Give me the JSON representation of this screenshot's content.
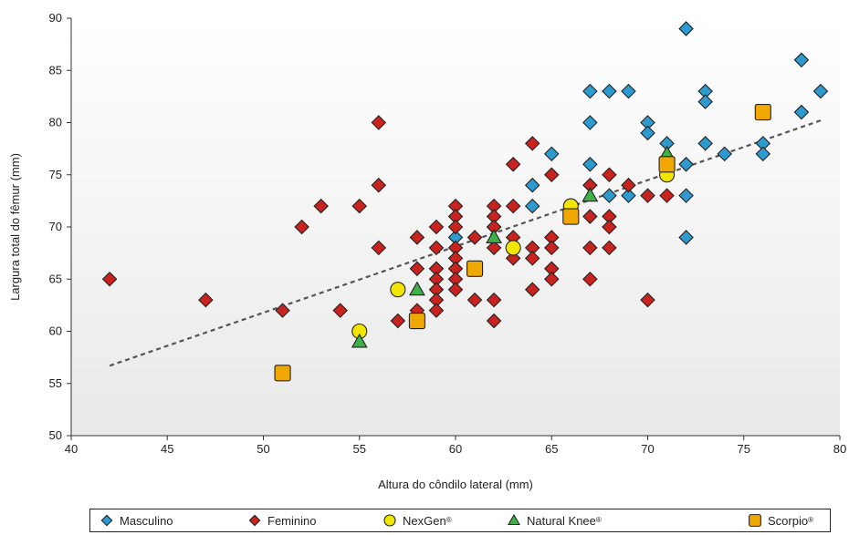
{
  "chart_data": {
    "type": "scatter",
    "xlabel": "Altura do côndilo lateral (mm)",
    "ylabel": "Largura total do fêmur (mm)",
    "xlim": [
      40,
      80
    ],
    "ylim": [
      50,
      90
    ],
    "x_ticks": [
      40,
      45,
      50,
      55,
      60,
      65,
      70,
      75,
      80
    ],
    "y_ticks": [
      50,
      55,
      60,
      65,
      70,
      75,
      80,
      85,
      90
    ],
    "grid": false,
    "legend_position": "bottom",
    "trendline": {
      "style": "dashed",
      "color": "#555555",
      "x": [
        42,
        79
      ],
      "y": [
        56.7,
        80.2
      ]
    },
    "series": [
      {
        "name": "Masculino",
        "sup": "",
        "marker": "diamond",
        "color": "#2e9bd0",
        "points": [
          [
            72,
            89
          ],
          [
            78,
            86
          ],
          [
            79,
            83
          ],
          [
            67,
            83
          ],
          [
            68,
            83
          ],
          [
            69,
            83
          ],
          [
            73,
            83
          ],
          [
            73,
            82
          ],
          [
            67,
            80
          ],
          [
            70,
            80
          ],
          [
            70,
            79
          ],
          [
            71,
            78
          ],
          [
            73,
            78
          ],
          [
            76,
            78
          ],
          [
            78,
            81
          ],
          [
            65,
            77
          ],
          [
            74,
            77
          ],
          [
            76,
            77
          ],
          [
            64,
            74
          ],
          [
            67,
            76
          ],
          [
            72,
            76
          ],
          [
            64,
            72
          ],
          [
            68,
            73
          ],
          [
            69,
            73
          ],
          [
            72,
            73
          ],
          [
            66,
            72
          ],
          [
            62,
            70
          ],
          [
            60,
            69
          ],
          [
            72,
            69
          ]
        ]
      },
      {
        "name": "Feminino",
        "sup": "",
        "marker": "diamond",
        "color": "#c8231e",
        "points": [
          [
            42,
            65
          ],
          [
            47,
            63
          ],
          [
            51,
            62
          ],
          [
            52,
            70
          ],
          [
            53,
            72
          ],
          [
            54,
            62
          ],
          [
            55,
            72
          ],
          [
            56,
            80
          ],
          [
            56,
            74
          ],
          [
            56,
            68
          ],
          [
            57,
            61
          ],
          [
            58,
            69
          ],
          [
            58,
            66
          ],
          [
            58,
            62
          ],
          [
            59,
            70
          ],
          [
            59,
            68
          ],
          [
            59,
            66
          ],
          [
            59,
            65
          ],
          [
            59,
            64
          ],
          [
            59,
            63
          ],
          [
            59,
            62
          ],
          [
            60,
            72
          ],
          [
            60,
            71
          ],
          [
            60,
            70
          ],
          [
            60,
            68
          ],
          [
            60,
            67
          ],
          [
            60,
            66
          ],
          [
            60,
            65
          ],
          [
            60,
            64
          ],
          [
            61,
            69
          ],
          [
            61,
            63
          ],
          [
            62,
            72
          ],
          [
            62,
            71
          ],
          [
            62,
            70
          ],
          [
            62,
            68
          ],
          [
            62,
            63
          ],
          [
            62,
            61
          ],
          [
            63,
            76
          ],
          [
            63,
            72
          ],
          [
            63,
            69
          ],
          [
            63,
            67
          ],
          [
            64,
            78
          ],
          [
            64,
            68
          ],
          [
            64,
            67
          ],
          [
            64,
            64
          ],
          [
            65,
            75
          ],
          [
            65,
            69
          ],
          [
            65,
            68
          ],
          [
            65,
            66
          ],
          [
            65,
            65
          ],
          [
            67,
            74
          ],
          [
            67,
            71
          ],
          [
            67,
            68
          ],
          [
            67,
            65
          ],
          [
            68,
            75
          ],
          [
            68,
            71
          ],
          [
            68,
            70
          ],
          [
            68,
            68
          ],
          [
            69,
            74
          ],
          [
            70,
            73
          ],
          [
            70,
            63
          ],
          [
            71,
            73
          ]
        ]
      },
      {
        "name": "NexGen",
        "sup": "®",
        "marker": "circle",
        "color": "#f2e600",
        "points": [
          [
            55,
            60
          ],
          [
            57,
            64
          ],
          [
            63,
            68
          ],
          [
            66,
            72
          ],
          [
            71,
            75
          ]
        ]
      },
      {
        "name": "Natural Knee",
        "sup": "®",
        "marker": "triangle",
        "color": "#3fb149",
        "points": [
          [
            55,
            59
          ],
          [
            58,
            64
          ],
          [
            62,
            69
          ],
          [
            67,
            73
          ],
          [
            71,
            77
          ]
        ]
      },
      {
        "name": "Scorpio",
        "sup": "®",
        "marker": "square",
        "color": "#f0a800",
        "points": [
          [
            51,
            56
          ],
          [
            58,
            61
          ],
          [
            61,
            66
          ],
          [
            66,
            71
          ],
          [
            71,
            76
          ],
          [
            76,
            81
          ]
        ]
      }
    ]
  }
}
